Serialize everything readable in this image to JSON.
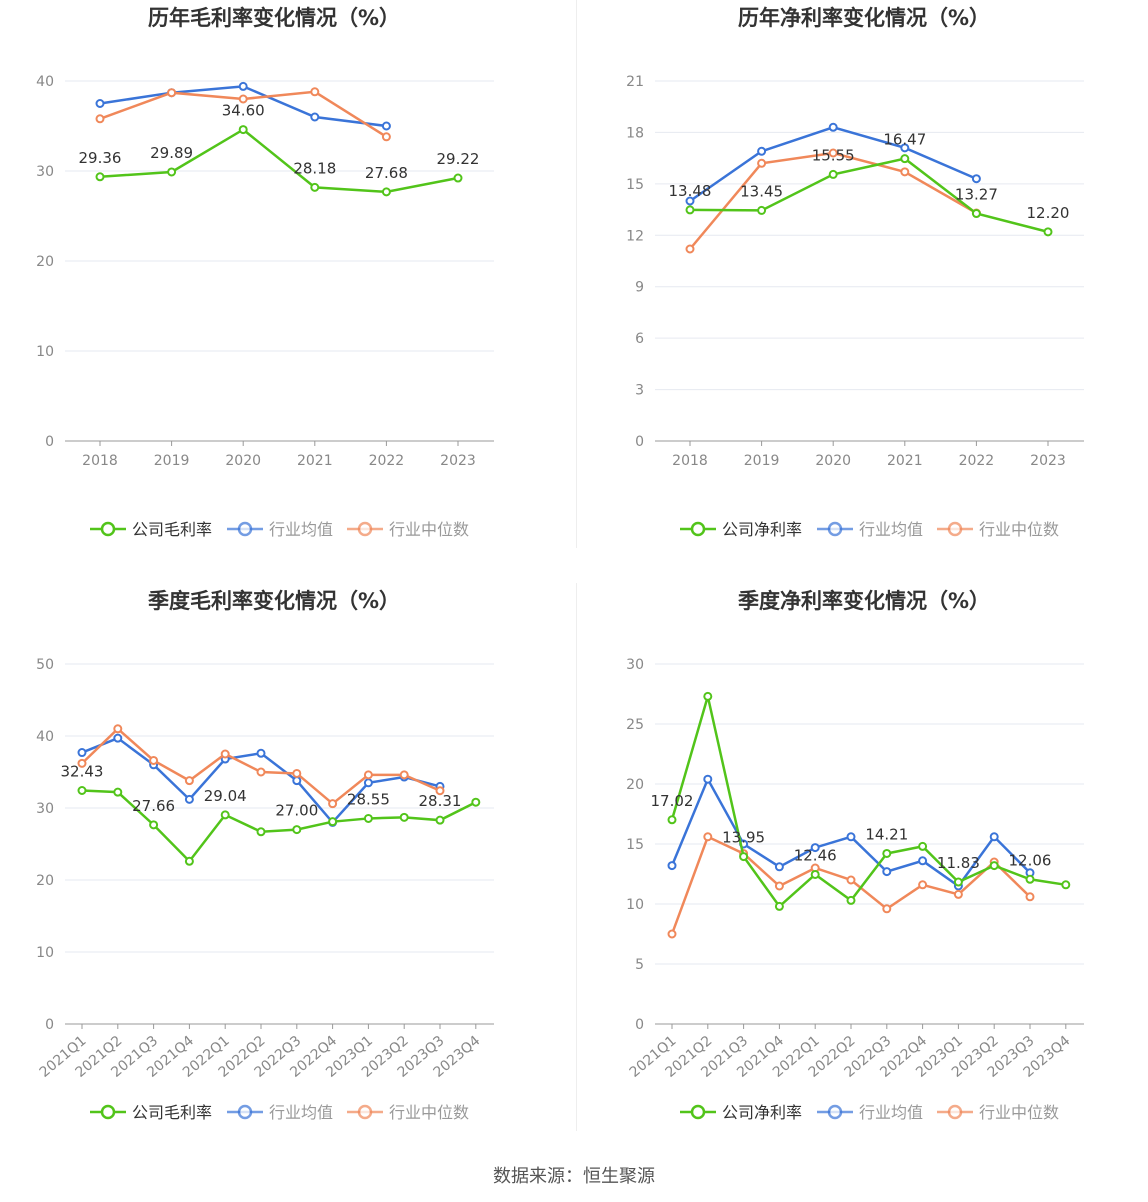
{
  "colors": {
    "company": "#52c41a",
    "avg": "#3a74d8",
    "median": "#f0885a"
  },
  "footer": "数据来源：恒生聚源",
  "chart_data": [
    {
      "type": "line",
      "title": "历年毛利率变化情况（%）",
      "categories": [
        "2018",
        "2019",
        "2020",
        "2021",
        "2022",
        "2023"
      ],
      "ylim": [
        0,
        40
      ],
      "yticks": [
        0,
        10,
        20,
        30,
        40
      ],
      "grid": true,
      "legend_position": "bottom",
      "series": [
        {
          "name": "公司毛利率",
          "key": "company",
          "values": [
            29.36,
            29.89,
            34.6,
            28.18,
            27.68,
            29.22
          ],
          "labels": [
            "29.36",
            "29.89",
            "34.60",
            "28.18",
            "27.68",
            "29.22"
          ]
        },
        {
          "name": "行业均值",
          "key": "avg",
          "values": [
            37.5,
            38.7,
            39.4,
            36.0,
            35.0,
            null
          ]
        },
        {
          "name": "行业中位数",
          "key": "median",
          "values": [
            35.8,
            38.7,
            38.0,
            38.8,
            33.8,
            null
          ]
        }
      ]
    },
    {
      "type": "line",
      "title": "历年净利率变化情况（%）",
      "categories": [
        "2018",
        "2019",
        "2020",
        "2021",
        "2022",
        "2023"
      ],
      "ylim": [
        0,
        21
      ],
      "yticks": [
        0,
        3,
        6,
        9,
        12,
        15,
        18,
        21
      ],
      "grid": true,
      "legend_position": "bottom",
      "series": [
        {
          "name": "公司净利率",
          "key": "company",
          "values": [
            13.48,
            13.45,
            15.55,
            16.47,
            13.27,
            12.2
          ],
          "labels": [
            "13.48",
            "13.45",
            "15.55",
            "16.47",
            "13.27",
            "12.20"
          ]
        },
        {
          "name": "行业均值",
          "key": "avg",
          "values": [
            14.0,
            16.9,
            18.3,
            17.1,
            15.3,
            null
          ]
        },
        {
          "name": "行业中位数",
          "key": "median",
          "values": [
            11.2,
            16.2,
            16.8,
            15.7,
            13.3,
            null
          ]
        }
      ]
    },
    {
      "type": "line",
      "title": "季度毛利率变化情况（%）",
      "categories": [
        "2021Q1",
        "2021Q2",
        "2021Q3",
        "2021Q4",
        "2022Q1",
        "2022Q2",
        "2022Q3",
        "2022Q4",
        "2023Q1",
        "2023Q2",
        "2023Q3",
        "2023Q4"
      ],
      "ylim": [
        0,
        50
      ],
      "yticks": [
        0,
        10,
        20,
        30,
        40,
        50
      ],
      "grid": true,
      "legend_position": "bottom",
      "series": [
        {
          "name": "公司毛利率",
          "key": "company",
          "values": [
            32.43,
            32.2,
            27.66,
            22.6,
            29.04,
            26.7,
            27.0,
            28.1,
            28.55,
            28.7,
            28.31,
            30.8
          ],
          "labels": [
            "32.43",
            "",
            "27.66",
            "",
            "29.04",
            "",
            "27.00",
            "",
            "28.55",
            "",
            "28.31",
            ""
          ]
        },
        {
          "name": "行业均值",
          "key": "avg",
          "values": [
            37.7,
            39.7,
            36.0,
            31.2,
            36.8,
            37.6,
            33.8,
            28.0,
            33.5,
            34.3,
            33.0,
            null
          ]
        },
        {
          "name": "行业中位数",
          "key": "median",
          "values": [
            36.2,
            41.0,
            36.6,
            33.8,
            37.5,
            35.0,
            34.8,
            30.6,
            34.6,
            34.6,
            32.4,
            null
          ]
        }
      ]
    },
    {
      "type": "line",
      "title": "季度净利率变化情况（%）",
      "categories": [
        "2021Q1",
        "2021Q2",
        "2021Q3",
        "2021Q4",
        "2022Q1",
        "2022Q2",
        "2022Q3",
        "2022Q4",
        "2023Q1",
        "2023Q2",
        "2023Q3",
        "2023Q4"
      ],
      "ylim": [
        0,
        30
      ],
      "yticks": [
        0,
        5,
        10,
        15,
        20,
        25,
        30
      ],
      "grid": true,
      "legend_position": "bottom",
      "series": [
        {
          "name": "公司净利率",
          "key": "company",
          "values": [
            17.02,
            27.3,
            13.95,
            9.8,
            12.46,
            10.3,
            14.21,
            14.8,
            11.83,
            13.2,
            12.06,
            11.6
          ],
          "labels": [
            "17.02",
            "",
            "13.95",
            "",
            "12.46",
            "",
            "14.21",
            "",
            "11.83",
            "",
            "12.06",
            ""
          ]
        },
        {
          "name": "行业均值",
          "key": "avg",
          "values": [
            13.2,
            20.4,
            15.0,
            13.1,
            14.7,
            15.6,
            12.7,
            13.6,
            11.5,
            15.6,
            12.6,
            null
          ]
        },
        {
          "name": "行业中位数",
          "key": "median",
          "values": [
            7.5,
            15.6,
            14.2,
            11.5,
            13.0,
            12.0,
            9.6,
            11.6,
            10.8,
            13.5,
            10.6,
            null
          ]
        }
      ]
    }
  ]
}
